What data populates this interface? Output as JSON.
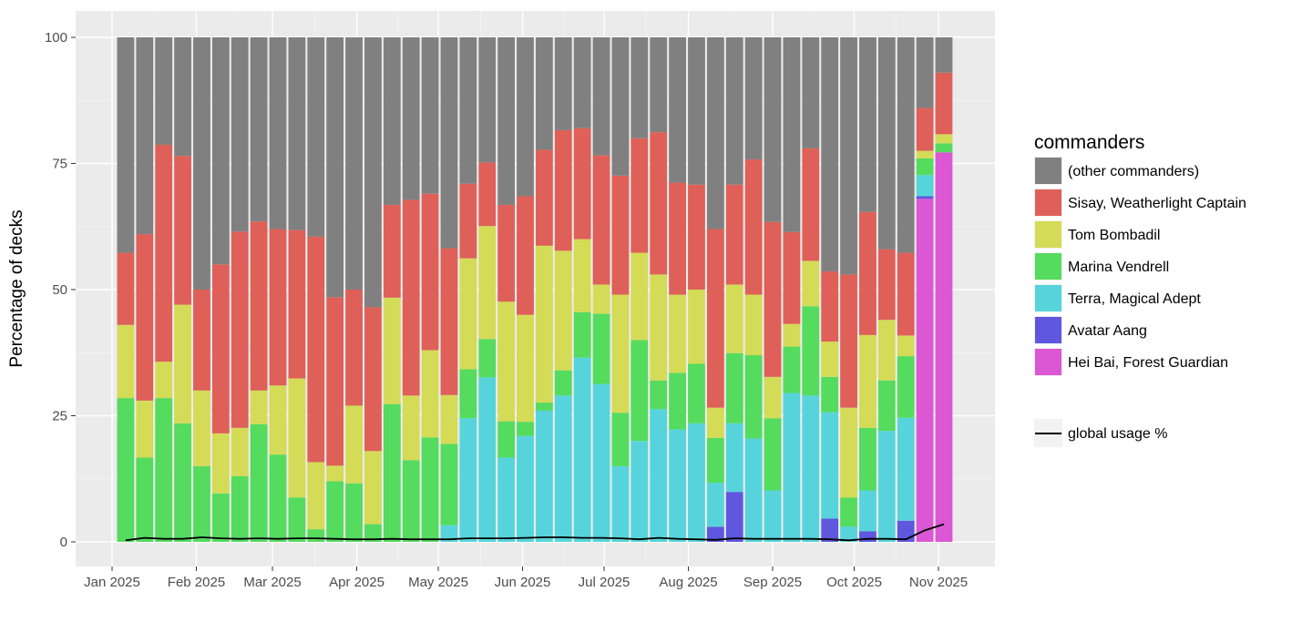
{
  "chart_data": {
    "type": "bar",
    "stacked": true,
    "title": "",
    "xlabel": "",
    "ylabel": "Percentage of decks",
    "ylim": [
      0,
      100
    ],
    "yticks": [
      0,
      25,
      50,
      75,
      100
    ],
    "xticks": [
      {
        "date": "2025-01-01",
        "label": "Jan 2025"
      },
      {
        "date": "2025-02-01",
        "label": "Feb 2025"
      },
      {
        "date": "2025-03-01",
        "label": "Mar 2025"
      },
      {
        "date": "2025-04-01",
        "label": "Apr 2025"
      },
      {
        "date": "2025-05-01",
        "label": "May 2025"
      },
      {
        "date": "2025-06-01",
        "label": "Jun 2025"
      },
      {
        "date": "2025-07-01",
        "label": "Jul 2025"
      },
      {
        "date": "2025-08-01",
        "label": "Aug 2025"
      },
      {
        "date": "2025-09-01",
        "label": "Sep 2025"
      },
      {
        "date": "2025-10-01",
        "label": "Oct 2025"
      },
      {
        "date": "2025-11-01",
        "label": "Nov 2025"
      }
    ],
    "x_start": "2025-01-06",
    "x_interval_days": 7,
    "grid": true,
    "legend_position": "right",
    "legend_title": "commanders",
    "series": [
      {
        "name": "Hei Bai, Forest Guardian",
        "color": "#db57d4",
        "values": [
          0,
          0,
          0,
          0,
          0,
          0,
          0,
          0,
          0,
          0,
          0,
          0,
          0,
          0,
          0,
          0,
          0,
          0,
          0,
          0,
          0,
          0,
          0,
          0,
          0,
          0,
          0,
          0,
          0,
          0,
          0,
          0,
          0,
          0,
          0,
          0,
          0,
          0,
          0,
          0,
          0,
          0,
          68,
          77.2
        ]
      },
      {
        "name": "Avatar Aang",
        "color": "#5f57de",
        "values": [
          0,
          0,
          0,
          0,
          0,
          0,
          0,
          0,
          0,
          0,
          0,
          0,
          0,
          0,
          0,
          0,
          0,
          0,
          0,
          0,
          0,
          0,
          0,
          0,
          0,
          0,
          0,
          0,
          0,
          0,
          0,
          3,
          9.9,
          0,
          0,
          0,
          0,
          4.6,
          0,
          2.1,
          0,
          4.2,
          0.5,
          0
        ]
      },
      {
        "name": "Terra, Magical Adept",
        "color": "#57d4db",
        "values": [
          0,
          0,
          0,
          0,
          0,
          0,
          0,
          0,
          0,
          0,
          0,
          0,
          0,
          0,
          0,
          0,
          0,
          3.3,
          24.5,
          32.6,
          16.7,
          21,
          26,
          29,
          36.5,
          31.3,
          15,
          20,
          26.3,
          22.3,
          23.5,
          8.7,
          13.6,
          20.5,
          10.2,
          29.5,
          29,
          21.1,
          3,
          8.1,
          22,
          20.4,
          4.2,
          0
        ]
      },
      {
        "name": "Marina Vendrell",
        "color": "#55db5e",
        "values": [
          28.5,
          16.7,
          28.5,
          23.5,
          15,
          9.6,
          13,
          23.3,
          17.3,
          8.8,
          2.5,
          12,
          11.6,
          3.5,
          27.3,
          16.2,
          20.7,
          16.1,
          9.7,
          7.6,
          7.2,
          2.8,
          1.6,
          5,
          9,
          13.9,
          10.6,
          20,
          5.7,
          11.2,
          11.8,
          8.9,
          13.9,
          16.5,
          14.3,
          9.2,
          17.7,
          7,
          5.8,
          12.4,
          10,
          12.2,
          3.3,
          1.8
        ]
      },
      {
        "name": "Tom Bombadil",
        "color": "#d4db57",
        "values": [
          14.5,
          11.3,
          7.2,
          23.5,
          15,
          11.9,
          9.6,
          6.7,
          13.7,
          23.6,
          13.3,
          3.1,
          15.4,
          14.5,
          21.1,
          12.8,
          17.3,
          9.7,
          22,
          22.4,
          23.7,
          21.2,
          31.1,
          23.7,
          14.5,
          5.8,
          23.4,
          17.3,
          21,
          15.5,
          14.7,
          6,
          13.6,
          12,
          8.2,
          4.5,
          9,
          7,
          17.8,
          18.4,
          12,
          4.1,
          1.5,
          1.8
        ]
      },
      {
        "name": "Sisay, Weatherlight Captain",
        "color": "#de6058",
        "values": [
          14.3,
          33,
          43,
          29.5,
          20,
          33.5,
          38.9,
          33.5,
          31,
          29.4,
          44.7,
          33.4,
          23,
          28.5,
          18.4,
          38.8,
          31,
          29.1,
          14.8,
          12.6,
          19.2,
          23.5,
          19,
          23.9,
          22,
          25.6,
          23.6,
          22.7,
          28.2,
          22.2,
          20.8,
          35.4,
          19.8,
          26.8,
          30.7,
          18.2,
          22.3,
          13.9,
          26.4,
          24.4,
          14,
          16.4,
          8.5,
          12.2
        ]
      },
      {
        "name": "(other commanders)",
        "color": "#808080",
        "values": [
          42.7,
          39,
          21.3,
          23.5,
          50,
          45,
          38.5,
          36.5,
          38,
          38.2,
          39.5,
          51.5,
          50,
          53.5,
          33.2,
          32.2,
          31,
          41.8,
          29,
          24.8,
          33.2,
          31.5,
          22.3,
          18.4,
          18,
          23.4,
          27.4,
          20,
          18.8,
          28.8,
          29.2,
          38,
          29.2,
          24.2,
          36.6,
          38.6,
          22,
          46.4,
          47,
          34.6,
          42,
          42.7,
          14,
          7
        ]
      }
    ],
    "line": {
      "name": "global usage %",
      "color": "#000000",
      "values": [
        0.3,
        0.8,
        0.6,
        0.6,
        0.9,
        0.7,
        0.6,
        0.7,
        0.6,
        0.7,
        0.7,
        0.6,
        0.5,
        0.5,
        0.6,
        0.5,
        0.5,
        0.5,
        0.7,
        0.7,
        0.7,
        0.8,
        0.9,
        0.9,
        0.8,
        0.8,
        0.7,
        0.5,
        0.8,
        0.6,
        0.5,
        0.4,
        0.7,
        0.6,
        0.6,
        0.6,
        0.6,
        0.5,
        0.3,
        0.6,
        0.6,
        0.5,
        2.3,
        3.5
      ]
    },
    "legend_order": [
      "(other commanders)",
      "Sisay, Weatherlight Captain",
      "Tom Bombadil",
      "Marina Vendrell",
      "Terra, Magical Adept",
      "Avatar Aang",
      "Hei Bai, Forest Guardian"
    ]
  }
}
